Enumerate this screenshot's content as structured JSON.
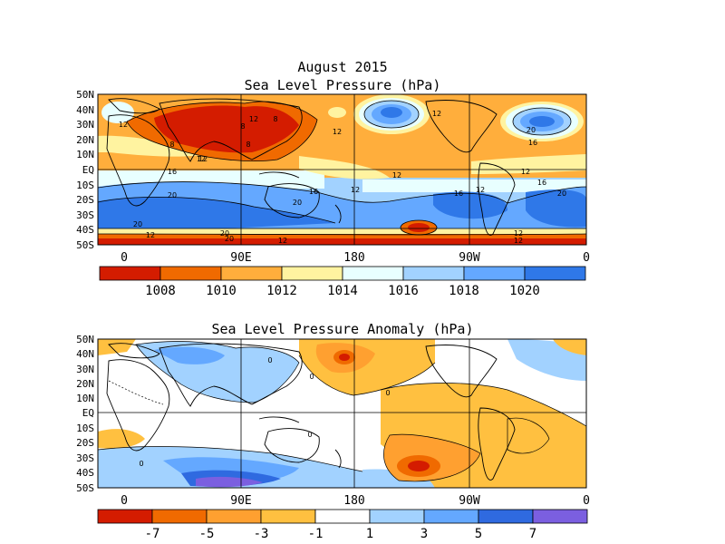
{
  "figure": {
    "title_line1": "August 2015",
    "title_line2": "Sea Level Pressure (hPa)",
    "title_anomaly": "Sea Level Pressure Anomaly (hPa)"
  },
  "axes": {
    "lat_labels": [
      "50N",
      "40N",
      "30N",
      "20N",
      "10N",
      "EQ",
      "10S",
      "20S",
      "30S",
      "40S",
      "50S"
    ],
    "lon_labels": [
      "0",
      "90E",
      "180",
      "90W",
      "0"
    ]
  },
  "panel_slp": {
    "units": "hPa",
    "colorbar": {
      "colors": [
        "#d41c00",
        "#f06a00",
        "#ffae3c",
        "#fff3a0",
        "#e8ffff",
        "#a2d2ff",
        "#64a8ff",
        "#2f78e8"
      ],
      "tick_labels": [
        "1008",
        "1010",
        "1012",
        "1014",
        "1016",
        "1018",
        "1020"
      ]
    },
    "contour_labels": [
      "12",
      "8",
      "8",
      "12",
      "8",
      "12",
      "8",
      "12",
      "12",
      "20",
      "16",
      "12",
      "16",
      "20",
      "12",
      "16",
      "16",
      "12",
      "20",
      "16",
      "20",
      "20",
      "20",
      "20",
      "12",
      "12",
      "12",
      "12",
      "12",
      "12"
    ]
  },
  "panel_anomaly": {
    "units": "hPa",
    "colorbar": {
      "colors": [
        "#d41c00",
        "#f06a00",
        "#ffa030",
        "#ffc040",
        "#ffffff",
        "#a2d2ff",
        "#64a8ff",
        "#2f6ae0",
        "#7b5fe0"
      ],
      "tick_labels": [
        "-7",
        "-5",
        "-3",
        "-1",
        "1",
        "3",
        "5",
        "7"
      ]
    },
    "contour_labels": [
      "0",
      "0",
      "0",
      "0",
      "0"
    ]
  },
  "colors": {
    "land_outline": "#000000",
    "frame": "#000000"
  }
}
